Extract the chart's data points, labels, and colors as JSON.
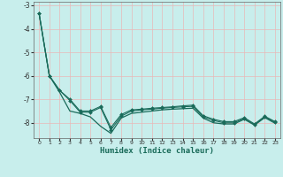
{
  "xlabel": "Humidex (Indice chaleur)",
  "background_color": "#c8eeec",
  "grid_color": "#e8b8b8",
  "line_color": "#1a6b5a",
  "x_data": [
    0,
    1,
    2,
    3,
    4,
    5,
    6,
    7,
    8,
    9,
    10,
    11,
    12,
    13,
    14,
    15,
    16,
    17,
    18,
    19,
    20,
    21,
    22,
    23
  ],
  "line1_y": [
    -3.35,
    -6.0,
    -6.7,
    -7.5,
    -7.6,
    -7.75,
    -8.15,
    -8.45,
    -7.8,
    -7.6,
    -7.55,
    -7.5,
    -7.45,
    -7.42,
    -7.4,
    -7.38,
    -7.8,
    -8.0,
    -8.05,
    -8.05,
    -7.85,
    -8.1,
    -7.78,
    -8.02
  ],
  "line2_y": [
    -3.35,
    -6.0,
    -6.62,
    -7.05,
    -7.55,
    -7.55,
    -7.35,
    -8.3,
    -7.72,
    -7.5,
    -7.45,
    -7.42,
    -7.38,
    -7.35,
    -7.32,
    -7.3,
    -7.75,
    -7.9,
    -8.0,
    -8.0,
    -7.82,
    -8.08,
    -7.75,
    -7.98
  ],
  "line3_y": [
    -3.35,
    -6.0,
    -6.62,
    -7.0,
    -7.5,
    -7.5,
    -7.3,
    -8.2,
    -7.65,
    -7.45,
    -7.42,
    -7.38,
    -7.35,
    -7.32,
    -7.28,
    -7.25,
    -7.7,
    -7.85,
    -7.95,
    -7.95,
    -7.78,
    -8.05,
    -7.72,
    -7.95
  ],
  "ylim": [
    -8.65,
    -2.85
  ],
  "xlim": [
    -0.5,
    23.5
  ],
  "yticks": [
    -3,
    -4,
    -5,
    -6,
    -7,
    -8
  ],
  "xticks": [
    0,
    1,
    2,
    3,
    4,
    5,
    6,
    7,
    8,
    9,
    10,
    11,
    12,
    13,
    14,
    15,
    16,
    17,
    18,
    19,
    20,
    21,
    22,
    23
  ]
}
